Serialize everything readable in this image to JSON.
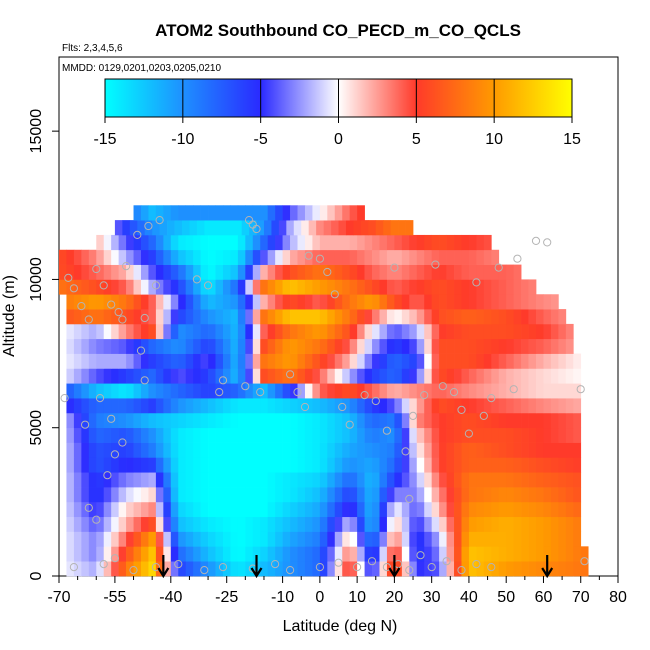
{
  "chart_data": {
    "type": "heatmap",
    "title": "ATOM2 Southbound CO_PECD_m_CO_QCLS",
    "flights_note": "Flts: 2,3,4,5,6",
    "dates_note": "MMDD: 0129,0201,0203,0205,0210",
    "xlabel": "Latitude (deg N)",
    "ylabel": "Altitude (m)",
    "xlim": [
      -70,
      80
    ],
    "ylim": [
      0,
      17500
    ],
    "x_ticks": [
      -70,
      -55,
      -40,
      -25,
      -10,
      0,
      10,
      20,
      30,
      40,
      50,
      60,
      70,
      80
    ],
    "x_tick_labels": [
      "-70",
      "-55",
      "-40",
      "-25",
      "-10",
      "0",
      "10",
      "20",
      "30",
      "40",
      "50",
      "60",
      "70",
      "80"
    ],
    "x_minor_ticks": [
      -65,
      -60,
      -50,
      -45,
      -35,
      -30,
      -20,
      -15,
      -5,
      5,
      15,
      25,
      35,
      45,
      55,
      65,
      75
    ],
    "y_ticks": [
      0,
      5000,
      10000,
      15000
    ],
    "y_tick_labels": [
      "0",
      "5000",
      "10000",
      "15000"
    ],
    "colorbar": {
      "range": [
        -15,
        15
      ],
      "ticks": [
        -15,
        -10,
        -5,
        0,
        5,
        10,
        15
      ],
      "tick_labels": [
        "-15",
        "-10",
        "-5",
        "0",
        "5",
        "10",
        "15"
      ],
      "stops": [
        {
          "v": -15,
          "color": "#00ffff"
        },
        {
          "v": -10,
          "color": "#1e90ff"
        },
        {
          "v": -5,
          "color": "#2a2aff"
        },
        {
          "v": 0,
          "color": "#ffffff"
        },
        {
          "v": 5,
          "color": "#ff3a2a"
        },
        {
          "v": 10,
          "color": "#ff9a00"
        },
        {
          "v": 15,
          "color": "#ffff00"
        }
      ]
    },
    "profile_arrows_lat": [
      -42,
      -17,
      20,
      61
    ],
    "altitude_levels": [
      250,
      750,
      1250,
      1750,
      2250,
      2750,
      3250,
      3750,
      4250,
      4750,
      5250,
      5750,
      6250,
      6750,
      7250,
      7750,
      8250,
      8750,
      9250,
      9750,
      10250,
      10750,
      11250,
      11750,
      12250
    ],
    "row_extent": [
      [
        -68,
        72
      ],
      [
        -68,
        72
      ],
      [
        -68,
        70
      ],
      [
        -68,
        70
      ],
      [
        -68,
        70
      ],
      [
        -68,
        70
      ],
      [
        -68,
        70
      ],
      [
        -68,
        70
      ],
      [
        -68,
        70
      ],
      [
        -68,
        70
      ],
      [
        -68,
        70
      ],
      [
        -68,
        70
      ],
      [
        -68,
        70
      ],
      [
        -68,
        70
      ],
      [
        -68,
        70
      ],
      [
        -68,
        68
      ],
      [
        -68,
        68
      ],
      [
        -68,
        66
      ],
      [
        -68,
        64
      ],
      [
        -70,
        58
      ],
      [
        -70,
        54
      ],
      [
        -70,
        48
      ],
      [
        -60,
        45
      ],
      [
        -55,
        25
      ],
      [
        -50,
        12
      ]
    ],
    "lat_nodes": [
      -70,
      -60,
      -52,
      -45,
      -38,
      -30,
      -22,
      -15,
      -8,
      0,
      8,
      14,
      20,
      26,
      32,
      40,
      50,
      60,
      72
    ],
    "values": [
      [
        0,
        -2,
        8,
        13,
        -6,
        -10,
        -14,
        -12,
        -10,
        -8,
        6,
        -6,
        8,
        -5,
        -4,
        12,
        10,
        9,
        8
      ],
      [
        0,
        -3,
        6,
        12,
        -8,
        -12,
        -15,
        -13,
        -10,
        -8,
        4,
        -8,
        6,
        -6,
        -3,
        12,
        11,
        10,
        8
      ],
      [
        0,
        -3,
        4,
        10,
        -10,
        -13,
        -15,
        -14,
        -11,
        -9,
        2,
        -10,
        4,
        -6,
        -2,
        11,
        11,
        10,
        8
      ],
      [
        0,
        -4,
        2,
        6,
        -12,
        -14,
        -15,
        -14,
        -12,
        -10,
        -1,
        -12,
        2,
        -5,
        0,
        10,
        11,
        10,
        8
      ],
      [
        0,
        -5,
        1,
        3,
        -13,
        -15,
        -15,
        -15,
        -13,
        -11,
        -4,
        -12,
        0,
        -4,
        2,
        9,
        10,
        9,
        7
      ],
      [
        0,
        -6,
        -1,
        1,
        -14,
        -15,
        -15,
        -15,
        -14,
        -12,
        -6,
        -12,
        -3,
        -3,
        3,
        8,
        9,
        8,
        6
      ],
      [
        0,
        -6,
        -3,
        -2,
        -14,
        -15,
        -15,
        -15,
        -14,
        -13,
        -8,
        -12,
        -6,
        -2,
        4,
        8,
        8,
        7,
        6
      ],
      [
        0,
        -7,
        -5,
        -6,
        -14,
        -15,
        -15,
        -15,
        -15,
        -14,
        -10,
        -11,
        -8,
        -1,
        5,
        7,
        7,
        6,
        5
      ],
      [
        0,
        -7,
        -6,
        -9,
        -14,
        -15,
        -15,
        -15,
        -15,
        -14,
        -11,
        -10,
        -9,
        0,
        5,
        7,
        6,
        5,
        5
      ],
      [
        0,
        -8,
        -7,
        -10,
        -14,
        -15,
        -15,
        -15,
        -15,
        -14,
        -12,
        -9,
        -10,
        1,
        5,
        6,
        6,
        5,
        4
      ],
      [
        0,
        -9,
        -10,
        -12,
        -13,
        -14,
        -15,
        -15,
        -15,
        -14,
        -12,
        -8,
        -9,
        3,
        5,
        6,
        5,
        5,
        4
      ],
      [
        -4,
        -8,
        -8,
        -6,
        -10,
        -12,
        -14,
        -14,
        -13,
        -12,
        -10,
        -6,
        -4,
        2,
        6,
        5,
        4,
        3,
        2
      ],
      [
        -6,
        -12,
        -14,
        -10,
        -8,
        -6,
        -8,
        -12,
        -6,
        4,
        6,
        4,
        2,
        3,
        4,
        3,
        2,
        1,
        1
      ],
      [
        0,
        -4,
        -6,
        -8,
        -4,
        -6,
        -12,
        6,
        8,
        4,
        -2,
        -6,
        -8,
        -4,
        6,
        4,
        2,
        1,
        0
      ],
      [
        0,
        -2,
        -2,
        -6,
        -8,
        -4,
        -12,
        8,
        10,
        6,
        2,
        -4,
        -8,
        -6,
        6,
        6,
        4,
        2,
        0
      ],
      [
        0,
        -3,
        -4,
        -8,
        -10,
        -6,
        -12,
        6,
        10,
        8,
        4,
        -2,
        -6,
        -4,
        6,
        6,
        5,
        4,
        2
      ],
      [
        0,
        -2,
        3,
        6,
        -10,
        -8,
        -12,
        4,
        8,
        10,
        6,
        0,
        -4,
        -2,
        5,
        6,
        6,
        5,
        2
      ],
      [
        6,
        8,
        6,
        4,
        -6,
        -10,
        -12,
        8,
        12,
        12,
        8,
        4,
        0,
        2,
        6,
        7,
        6,
        4,
        2
      ],
      [
        8,
        10,
        8,
        4,
        -4,
        -12,
        -10,
        2,
        6,
        4,
        8,
        10,
        6,
        4,
        6,
        5,
        4,
        3,
        2
      ],
      [
        8,
        6,
        4,
        -2,
        -6,
        -14,
        -8,
        8,
        12,
        10,
        8,
        6,
        4,
        5,
        6,
        5,
        4,
        3,
        2
      ],
      [
        6,
        4,
        2,
        -4,
        -8,
        -15,
        -12,
        2,
        6,
        8,
        6,
        4,
        3,
        4,
        5,
        4,
        4,
        3,
        2
      ],
      [
        6,
        3,
        -2,
        -6,
        -12,
        -15,
        -14,
        -4,
        2,
        4,
        4,
        3,
        2,
        3,
        4,
        4,
        3,
        2,
        2
      ],
      [
        4,
        2,
        -4,
        -8,
        -14,
        -15,
        -15,
        -8,
        -2,
        2,
        2,
        3,
        4,
        5,
        6,
        5,
        4,
        3,
        2
      ],
      [
        3,
        2,
        -6,
        -10,
        -12,
        -14,
        -14,
        -10,
        -2,
        3,
        5,
        6,
        8,
        8,
        9,
        8,
        6,
        4,
        2
      ],
      [
        2,
        1,
        -8,
        -12,
        -10,
        -10,
        -10,
        -10,
        -4,
        0,
        4,
        6,
        9,
        10,
        10,
        8,
        6,
        4,
        2
      ]
    ],
    "obs_points": [
      [
        -68.5,
        6000
      ],
      [
        -67.5,
        10050
      ],
      [
        -66,
        9700
      ],
      [
        -64,
        9100
      ],
      [
        -62,
        8650
      ],
      [
        -60,
        10350
      ],
      [
        -58,
        9800
      ],
      [
        -56,
        9150
      ],
      [
        -54,
        8900
      ],
      [
        -53,
        8650
      ],
      [
        -52,
        10450
      ],
      [
        -55,
        600
      ],
      [
        -58,
        400
      ],
      [
        -66,
        300
      ],
      [
        -62,
        2300
      ],
      [
        -60,
        1900
      ],
      [
        -57,
        3400
      ],
      [
        -55,
        4100
      ],
      [
        -53,
        4500
      ],
      [
        -56,
        5300
      ],
      [
        -59,
        6000
      ],
      [
        -63,
        5100
      ],
      [
        -49,
        11500
      ],
      [
        -46,
        11800
      ],
      [
        -43,
        12000
      ],
      [
        -44,
        9800
      ],
      [
        -47,
        8700
      ],
      [
        -48,
        7600
      ],
      [
        -47,
        6600
      ],
      [
        -33,
        10000
      ],
      [
        -30,
        9800
      ],
      [
        -27,
        6200
      ],
      [
        -26,
        6600
      ],
      [
        -19,
        12000
      ],
      [
        -18,
        11850
      ],
      [
        -17,
        11700
      ],
      [
        -20,
        6400
      ],
      [
        -16,
        6200
      ],
      [
        -8,
        6800
      ],
      [
        -6,
        6200
      ],
      [
        -4,
        5700
      ],
      [
        -3,
        10800
      ],
      [
        0,
        10700
      ],
      [
        2,
        10250
      ],
      [
        4,
        9500
      ],
      [
        6,
        5700
      ],
      [
        8,
        5100
      ],
      [
        12,
        6100
      ],
      [
        15,
        5900
      ],
      [
        18,
        4900
      ],
      [
        20,
        10400
      ],
      [
        23,
        4200
      ],
      [
        24,
        2600
      ],
      [
        25,
        5400
      ],
      [
        28,
        6100
      ],
      [
        31,
        10500
      ],
      [
        33,
        6400
      ],
      [
        36,
        6200
      ],
      [
        38,
        5600
      ],
      [
        40,
        4800
      ],
      [
        42,
        9900
      ],
      [
        44,
        5400
      ],
      [
        46,
        6000
      ],
      [
        48,
        10400
      ],
      [
        52,
        6300
      ],
      [
        53,
        10700
      ],
      [
        58,
        11300
      ],
      [
        61,
        11250
      ],
      [
        70,
        6300
      ],
      [
        -50,
        200
      ],
      [
        -44,
        300
      ],
      [
        -38,
        400
      ],
      [
        -31,
        200
      ],
      [
        -26,
        300
      ],
      [
        -18,
        250
      ],
      [
        -12,
        400
      ],
      [
        -8,
        200
      ],
      [
        0,
        300
      ],
      [
        5,
        450
      ],
      [
        10,
        300
      ],
      [
        14,
        500
      ],
      [
        18,
        300
      ],
      [
        21,
        400
      ],
      [
        24,
        200
      ],
      [
        27,
        700
      ],
      [
        30,
        300
      ],
      [
        34,
        500
      ],
      [
        38,
        200
      ],
      [
        42,
        400
      ],
      [
        46,
        300
      ],
      [
        71,
        500
      ]
    ]
  }
}
